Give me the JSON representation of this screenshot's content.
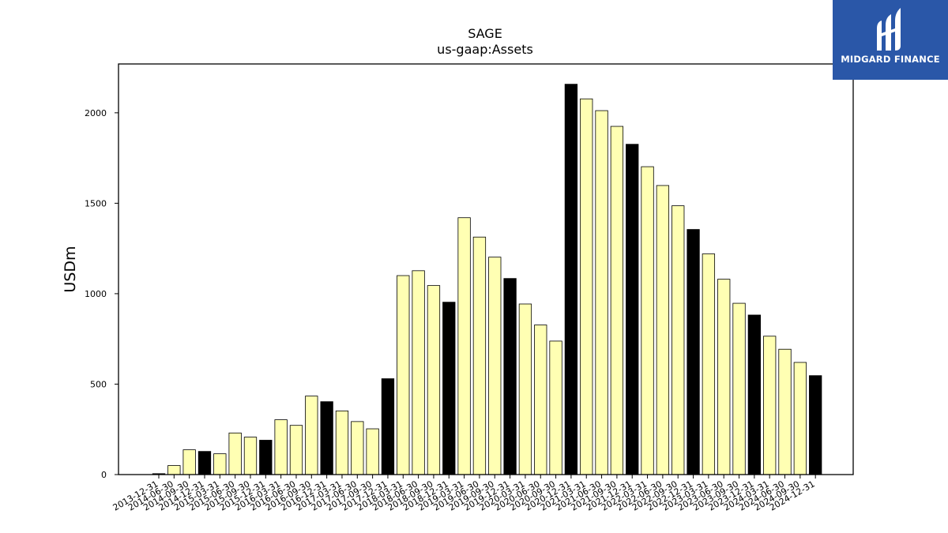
{
  "chart_data": {
    "type": "bar",
    "title": "SAGE",
    "subtitle": "us-gaap:Assets",
    "xlabel": "",
    "ylabel": "USDm",
    "ylim": [
      0,
      2270
    ],
    "yticks": [
      0,
      500,
      1000,
      1500,
      2000
    ],
    "grid": false,
    "colors": {
      "quarter": "#ffffb3",
      "year_end": "#000000",
      "edge": "#000000"
    },
    "categories": [
      "2013-12-31",
      "2014-06-30",
      "2014-09-30",
      "2014-12-31",
      "2015-03-31",
      "2015-06-30",
      "2015-09-30",
      "2015-12-31",
      "2016-03-31",
      "2016-06-30",
      "2016-09-30",
      "2016-12-31",
      "2017-03-31",
      "2017-06-30",
      "2017-09-30",
      "2017-12-31",
      "2018-03-31",
      "2018-06-30",
      "2018-09-30",
      "2018-12-31",
      "2019-03-31",
      "2019-06-30",
      "2019-09-30",
      "2019-12-31",
      "2020-03-31",
      "2020-06-30",
      "2020-09-30",
      "2020-12-31",
      "2021-03-31",
      "2021-06-30",
      "2021-09-30",
      "2021-12-31",
      "2022-03-31",
      "2022-06-30",
      "2022-09-30",
      "2022-12-31",
      "2023-03-31",
      "2023-06-30",
      "2023-09-30",
      "2023-12-31",
      "2024-03-31",
      "2024-06-30",
      "2024-09-30",
      "2024-12-31"
    ],
    "values": [
      5,
      50,
      137,
      128,
      115,
      230,
      207,
      190,
      303,
      272,
      434,
      403,
      352,
      293,
      253,
      530,
      1100,
      1127,
      1045,
      953,
      1420,
      1313,
      1202,
      1084,
      943,
      827,
      738,
      2158,
      2077,
      2012,
      1925,
      1826,
      1702,
      1598,
      1486,
      1355,
      1220,
      1080,
      947,
      882,
      765,
      693,
      620,
      547
    ]
  },
  "logo": {
    "text": "MIDGARD FINANCE",
    "background": "#2a57a8"
  }
}
